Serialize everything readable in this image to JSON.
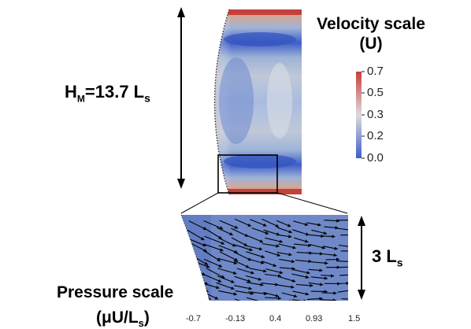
{
  "height_label": {
    "prefix": "H",
    "sub": "M",
    "value": "=13.7 L",
    "unit_sub": "s"
  },
  "width_label": {
    "value": "3 L",
    "unit_sub": "s"
  },
  "velocity_scale": {
    "title_line1": "Velocity scale",
    "title_line2": "(U)",
    "ticks": [
      "0.7",
      "0.5",
      "0.3",
      "0.2",
      "0.0"
    ],
    "colors": {
      "high": "#c6403a",
      "mid": "#dcdcdc",
      "low": "#3f5ec8"
    }
  },
  "pressure_scale": {
    "title_line1": "Pressure scale",
    "title_line2": "(μU/L",
    "title_sub": "s",
    "title_close": ")",
    "ticks": [
      "-0.7",
      "-0.13",
      "0.4",
      "0.93",
      "1.5"
    ]
  }
}
